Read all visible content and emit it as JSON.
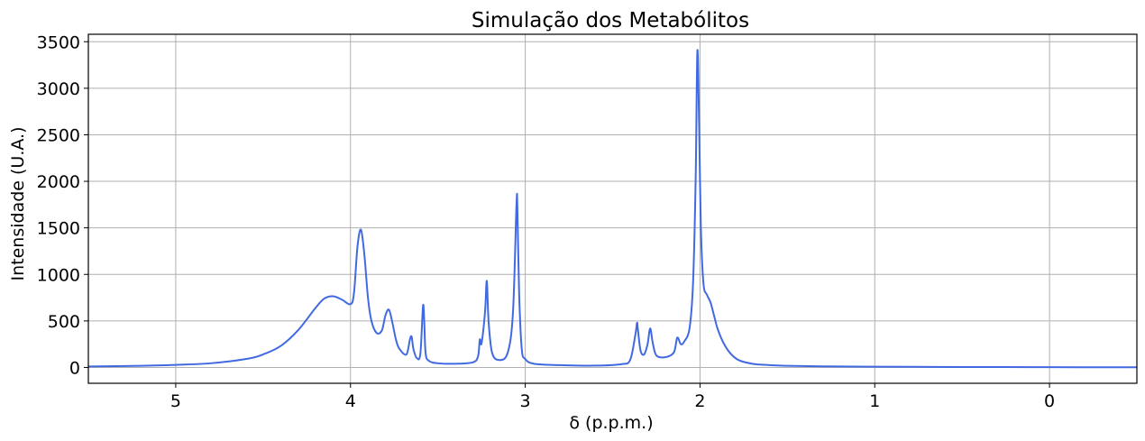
{
  "chart_data": {
    "type": "line",
    "title": "Simulação dos Metabólitos",
    "xlabel": "δ (p.p.m.)",
    "ylabel": "Intensidade (U.A.)",
    "xlim": [
      5.5,
      -0.5
    ],
    "ylim": [
      -170,
      3580
    ],
    "x_reversed": true,
    "grid": true,
    "x_ticks": [
      5,
      4,
      3,
      2,
      1,
      0
    ],
    "x_tick_labels": [
      "5",
      "4",
      "3",
      "2",
      "1",
      "0"
    ],
    "y_ticks": [
      0,
      500,
      1000,
      1500,
      2000,
      2500,
      3000,
      3500
    ],
    "y_tick_labels": [
      "0",
      "500",
      "1000",
      "1500",
      "2000",
      "2500",
      "3000",
      "3500"
    ],
    "series": [
      {
        "color": "#4169e1",
        "x": [
          5.5,
          5.2,
          5.0,
          4.8,
          4.6,
          4.5,
          4.4,
          4.3,
          4.2,
          4.15,
          4.1,
          4.05,
          4.0,
          3.98,
          3.96,
          3.94,
          3.92,
          3.9,
          3.88,
          3.85,
          3.82,
          3.8,
          3.78,
          3.76,
          3.74,
          3.72,
          3.68,
          3.66,
          3.65,
          3.64,
          3.62,
          3.6,
          3.585,
          3.578,
          3.57,
          3.55,
          3.5,
          3.4,
          3.3,
          3.27,
          3.26,
          3.25,
          3.23,
          3.22,
          3.21,
          3.19,
          3.15,
          3.1,
          3.07,
          3.05,
          3.045,
          3.035,
          3.02,
          3.0,
          2.95,
          2.8,
          2.6,
          2.45,
          2.4,
          2.37,
          2.36,
          2.355,
          2.34,
          2.32,
          2.3,
          2.285,
          2.27,
          2.25,
          2.2,
          2.15,
          2.13,
          2.11,
          2.09,
          2.06,
          2.04,
          2.025,
          2.015,
          2.005,
          1.995,
          1.98,
          1.96,
          1.94,
          1.92,
          1.9,
          1.87,
          1.83,
          1.78,
          1.7,
          1.6,
          1.5,
          1.3,
          1.0,
          0.5,
          0.0,
          -0.5
        ],
        "y": [
          10,
          18,
          28,
          45,
          90,
          140,
          230,
          400,
          640,
          740,
          765,
          730,
          680,
          800,
          1300,
          1480,
          1200,
          750,
          500,
          370,
          400,
          560,
          620,
          480,
          300,
          200,
          140,
          300,
          330,
          200,
          100,
          150,
          660,
          500,
          150,
          70,
          45,
          40,
          55,
          120,
          300,
          260,
          600,
          930,
          500,
          160,
          80,
          160,
          600,
          1750,
          1720,
          800,
          200,
          90,
          40,
          25,
          20,
          35,
          80,
          350,
          480,
          400,
          180,
          140,
          250,
          420,
          260,
          130,
          110,
          160,
          320,
          250,
          280,
          420,
          900,
          2000,
          3400,
          2600,
          1500,
          900,
          780,
          700,
          560,
          420,
          280,
          160,
          80,
          40,
          25,
          18,
          12,
          8,
          5,
          3,
          2
        ]
      }
    ]
  }
}
